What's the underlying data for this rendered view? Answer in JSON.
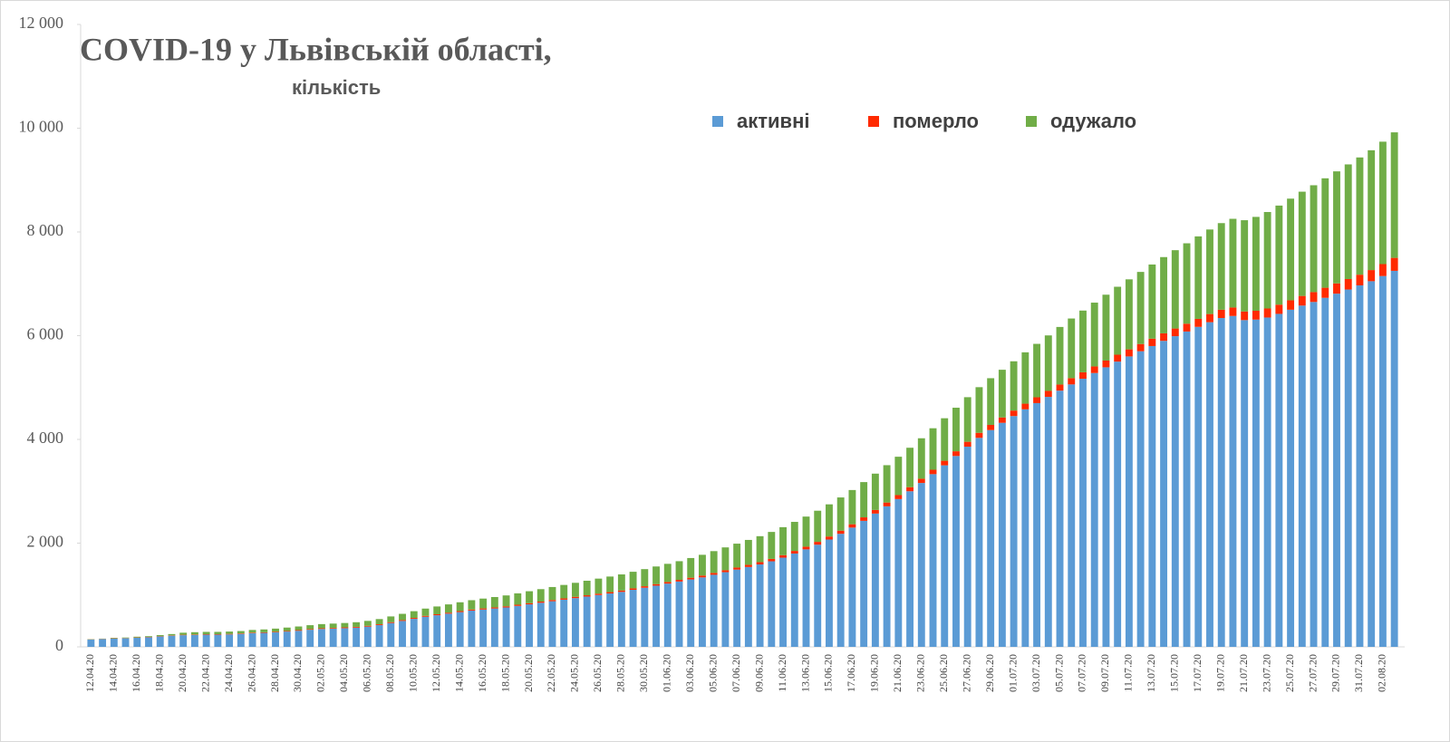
{
  "chart_data": {
    "type": "stacked-bar",
    "title": "COVID-19 у Львівській області,",
    "subtitle": "кількість",
    "categories": [
      "12.04.20",
      null,
      "14.04.20",
      null,
      "16.04.20",
      null,
      "18.04.20",
      null,
      "20.04.20",
      null,
      "22.04.20",
      null,
      "24.04.20",
      null,
      "26.04.20",
      null,
      "28.04.20",
      null,
      "30.04.20",
      null,
      "02.05.20",
      null,
      "04.05.20",
      null,
      "06.05.20",
      null,
      "08.05.20",
      null,
      "10.05.20",
      null,
      "12.05.20",
      null,
      "14.05.20",
      null,
      "16.05.20",
      null,
      "18.05.20",
      null,
      "20.05.20",
      null,
      "22.05.20",
      null,
      "24.05.20",
      null,
      "26.05.20",
      null,
      "28.05.20",
      null,
      "30.05.20",
      null,
      "01.06.20",
      null,
      "03.06.20",
      null,
      "05.06.20",
      null,
      "07.06.20",
      null,
      "09.06.20",
      null,
      "11.06.20",
      null,
      "13.06.20",
      null,
      "15.06.20",
      null,
      "17.06.20",
      null,
      "19.06.20",
      null,
      "21.06.20",
      null,
      "23.06.20",
      null,
      "25.06.20",
      null,
      "27.06.20",
      null,
      "29.06.20",
      null,
      "01.07.20",
      null,
      "03.07.20",
      null,
      "05.07.20",
      null,
      "07.07.20",
      null,
      "09.07.20",
      null,
      "11.07.20",
      null,
      "13.07.20",
      null,
      "15.07.20",
      null,
      "17.07.20",
      null,
      "19.07.20",
      null,
      "21.07.20",
      null,
      "23.07.20",
      null,
      "25.07.20",
      null,
      "27.07.20",
      null,
      "29.07.20",
      null,
      "31.07.20",
      null,
      "02.08.20",
      null
    ],
    "series": [
      {
        "name": "активні",
        "color": "#5b9bd5",
        "values": [
          140,
          150,
          160,
          165,
          175,
          185,
          200,
          215,
          225,
          230,
          235,
          235,
          240,
          250,
          265,
          270,
          280,
          295,
          310,
          330,
          345,
          350,
          360,
          370,
          390,
          420,
          460,
          500,
          540,
          580,
          610,
          640,
          670,
          700,
          720,
          740,
          760,
          790,
          820,
          850,
          880,
          910,
          940,
          970,
          1000,
          1030,
          1060,
          1100,
          1140,
          1180,
          1220,
          1260,
          1300,
          1340,
          1390,
          1440,
          1490,
          1540,
          1590,
          1650,
          1720,
          1800,
          1880,
          1970,
          2070,
          2180,
          2300,
          2430,
          2570,
          2710,
          2850,
          3000,
          3160,
          3330,
          3500,
          3680,
          3860,
          4030,
          4180,
          4320,
          4450,
          4580,
          4700,
          4820,
          4940,
          5060,
          5170,
          5280,
          5390,
          5500,
          5600,
          5700,
          5800,
          5900,
          5990,
          6080,
          6170,
          6260,
          6340,
          6380,
          6300,
          6310,
          6350,
          6420,
          6500,
          6580,
          6650,
          6730,
          6810,
          6890,
          6970,
          7050,
          7150,
          7250
        ]
      },
      {
        "name": "померло",
        "color": "#ff2a00",
        "values": [
          4,
          4,
          5,
          5,
          6,
          6,
          7,
          7,
          8,
          8,
          9,
          9,
          10,
          10,
          11,
          11,
          12,
          12,
          13,
          13,
          14,
          14,
          15,
          15,
          16,
          16,
          17,
          17,
          18,
          18,
          19,
          19,
          20,
          20,
          21,
          21,
          22,
          22,
          23,
          23,
          24,
          24,
          25,
          25,
          26,
          26,
          27,
          28,
          29,
          30,
          31,
          32,
          33,
          35,
          36,
          38,
          40,
          42,
          44,
          46,
          48,
          50,
          52,
          55,
          58,
          61,
          64,
          67,
          70,
          73,
          76,
          79,
          82,
          85,
          88,
          91,
          94,
          97,
          100,
          103,
          106,
          109,
          112,
          115,
          118,
          121,
          124,
          127,
          130,
          133,
          136,
          139,
          142,
          145,
          148,
          151,
          154,
          157,
          160,
          163,
          166,
          170,
          174,
          178,
          182,
          186,
          190,
          194,
          198,
          202,
          206,
          215,
          230,
          250
        ]
      },
      {
        "name": "одужало",
        "color": "#70ad47",
        "values": [
          5,
          5,
          10,
          10,
          15,
          15,
          20,
          25,
          40,
          45,
          45,
          45,
          45,
          45,
          50,
          55,
          60,
          65,
          70,
          75,
          80,
          85,
          85,
          90,
          95,
          100,
          110,
          120,
          130,
          140,
          150,
          160,
          170,
          180,
          190,
          200,
          210,
          220,
          230,
          240,
          250,
          260,
          270,
          280,
          290,
          300,
          310,
          320,
          330,
          340,
          350,
          360,
          380,
          400,
          420,
          440,
          460,
          480,
          500,
          520,
          540,
          560,
          580,
          600,
          620,
          640,
          660,
          680,
          700,
          720,
          740,
          760,
          780,
          800,
          820,
          840,
          860,
          880,
          900,
          920,
          950,
          990,
          1030,
          1070,
          1110,
          1150,
          1190,
          1230,
          1270,
          1310,
          1350,
          1390,
          1430,
          1470,
          1510,
          1550,
          1590,
          1630,
          1670,
          1710,
          1760,
          1810,
          1860,
          1910,
          1960,
          2010,
          2060,
          2110,
          2160,
          2210,
          2260,
          2310,
          2360,
          2420
        ]
      }
    ],
    "ylim": [
      0,
      12000
    ],
    "yticks": [
      0,
      {
        "value": 2000,
        "label": "2 000"
      },
      {
        "value": 4000,
        "label": "4 000"
      },
      {
        "value": 6000,
        "label": "6 000"
      },
      {
        "value": 8000,
        "label": "8 000"
      },
      {
        "value": 10000,
        "label": "10 000"
      },
      {
        "value": 12000,
        "label": "12 000"
      }
    ]
  }
}
